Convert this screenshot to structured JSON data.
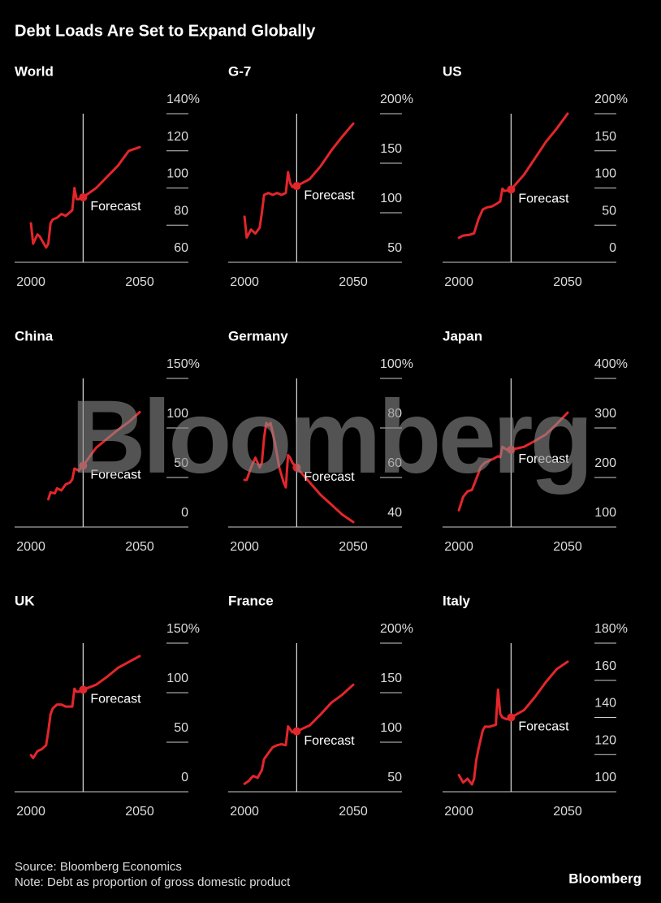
{
  "title": "Debt Loads Are Set to Expand Globally",
  "source": "Source: Bloomberg Economics",
  "note": "Note: Debt as proportion of gross domestic product",
  "logo": "Bloomberg",
  "watermark": "Bloomberg",
  "chart_data": [
    {
      "type": "line",
      "title": "World",
      "color": "#e3262b",
      "x": [
        2000,
        2001,
        2003,
        2004,
        2007,
        2008,
        2009,
        2010,
        2012,
        2014,
        2016,
        2018,
        2019,
        2020,
        2021,
        2022,
        2024,
        2030,
        2035,
        2040,
        2045,
        2050
      ],
      "values": [
        81,
        70,
        75,
        74,
        68,
        70,
        81,
        83,
        84,
        86,
        85,
        87,
        88,
        100,
        94,
        94,
        95,
        100,
        106,
        112,
        120,
        122
      ],
      "xlim": [
        1992.5,
        2072.4
      ],
      "xticks": [
        2000,
        2050
      ],
      "ylim": [
        60,
        140
      ],
      "yticks": [
        60,
        80,
        100,
        120,
        {
          "value": 140,
          "label": "140%"
        }
      ],
      "annotation": {
        "text": "Forecast",
        "x": 2024
      }
    },
    {
      "type": "line",
      "title": "G-7",
      "color": "#e3262b",
      "x": [
        2000,
        2001,
        2003,
        2005,
        2007,
        2008,
        2009,
        2011,
        2013,
        2015,
        2017,
        2019,
        2020,
        2021,
        2022,
        2024,
        2030,
        2035,
        2040,
        2045,
        2050
      ],
      "values": [
        96,
        75,
        83,
        79,
        85,
        100,
        118,
        120,
        118,
        120,
        118,
        120,
        141,
        130,
        126,
        127,
        134,
        147,
        163,
        177,
        190
      ],
      "xlim": [
        1992.5,
        2072.4
      ],
      "xticks": [
        2000,
        2050
      ],
      "ylim": [
        50,
        200
      ],
      "yticks": [
        50,
        100,
        150,
        {
          "value": 200,
          "label": "200%"
        }
      ],
      "annotation": {
        "text": "Forecast",
        "x": 2024
      }
    },
    {
      "type": "line",
      "title": "US",
      "color": "#e3262b",
      "x": [
        2000,
        2002,
        2005,
        2007,
        2009,
        2011,
        2013,
        2015,
        2017,
        2019,
        2020,
        2021,
        2023,
        2024,
        2030,
        2035,
        2040,
        2045,
        2050
      ],
      "values": [
        33,
        36,
        37,
        39,
        58,
        71,
        74,
        75,
        78,
        82,
        99,
        96,
        97,
        98,
        118,
        140,
        162,
        180,
        200
      ],
      "xlim": [
        1992.5,
        2072.4
      ],
      "xticks": [
        2000,
        2050
      ],
      "ylim": [
        0,
        200
      ],
      "yticks": [
        0,
        50,
        100,
        150,
        {
          "value": 200,
          "label": "200%"
        }
      ],
      "annotation": {
        "text": "Forecast",
        "x": 2024
      }
    },
    {
      "type": "line",
      "title": "China",
      "color": "#e3262b",
      "x": [
        2008,
        2009,
        2011,
        2012,
        2014,
        2016,
        2018,
        2019,
        2020,
        2022,
        2024,
        2030,
        2035,
        2040,
        2045,
        2050
      ],
      "values": [
        28,
        35,
        34,
        39,
        37,
        43,
        45,
        48,
        59,
        57,
        62,
        80,
        89,
        98,
        106,
        116
      ],
      "xlim": [
        1992.5,
        2072.4
      ],
      "xticks": [
        2000,
        2050
      ],
      "ylim": [
        0,
        150
      ],
      "yticks": [
        0,
        50,
        100,
        {
          "value": 150,
          "label": "150%"
        }
      ],
      "annotation": {
        "text": "Forecast",
        "x": 2024
      }
    },
    {
      "type": "line",
      "title": "Germany",
      "color": "#e3262b",
      "x": [
        2000,
        2001,
        2003,
        2005,
        2006,
        2007,
        2008,
        2009,
        2010,
        2011,
        2012,
        2014,
        2016,
        2018,
        2019,
        2020,
        2021,
        2022,
        2024,
        2030,
        2035,
        2040,
        2045,
        2050
      ],
      "values": [
        59,
        59,
        64,
        68,
        66,
        64,
        66,
        76,
        82,
        81,
        82,
        74,
        64,
        58,
        56,
        69,
        68,
        66,
        64,
        58,
        53,
        49,
        45,
        42
      ],
      "xlim": [
        1992.5,
        2072.4
      ],
      "xticks": [
        2000,
        2050
      ],
      "ylim": [
        40,
        100
      ],
      "yticks": [
        40,
        60,
        80,
        {
          "value": 100,
          "label": "100%"
        }
      ],
      "annotation": {
        "text": "Forecast",
        "x": 2024
      }
    },
    {
      "type": "line",
      "title": "Japan",
      "color": "#e3262b",
      "x": [
        2000,
        2002,
        2004,
        2006,
        2008,
        2010,
        2012,
        2014,
        2016,
        2018,
        2019,
        2020,
        2022,
        2024,
        2030,
        2035,
        2040,
        2045,
        2050
      ],
      "values": [
        134,
        161,
        172,
        175,
        197,
        221,
        230,
        234,
        238,
        243,
        241,
        262,
        256,
        256,
        262,
        274,
        287,
        308,
        331
      ],
      "xlim": [
        1992.5,
        2072.4
      ],
      "xticks": [
        2000,
        2050
      ],
      "ylim": [
        100,
        400
      ],
      "yticks": [
        100,
        200,
        300,
        {
          "value": 400,
          "label": "400%"
        }
      ],
      "annotation": {
        "text": "Forecast",
        "x": 2024
      }
    },
    {
      "type": "line",
      "title": "UK",
      "color": "#e3262b",
      "x": [
        2000,
        2001,
        2003,
        2005,
        2007,
        2008,
        2009,
        2010,
        2012,
        2014,
        2016,
        2018,
        2019,
        2020,
        2021,
        2022,
        2024,
        2030,
        2035,
        2040,
        2045,
        2050
      ],
      "values": [
        37,
        34,
        41,
        43,
        47,
        61,
        78,
        84,
        88,
        88,
        86,
        86,
        86,
        104,
        101,
        101,
        103,
        108,
        116,
        125,
        131,
        137
      ],
      "xlim": [
        1992.5,
        2072.4
      ],
      "xticks": [
        2000,
        2050
      ],
      "ylim": [
        0,
        150
      ],
      "yticks": [
        0,
        50,
        100,
        {
          "value": 150,
          "label": "150%"
        }
      ],
      "annotation": {
        "text": "Forecast",
        "x": 2024
      }
    },
    {
      "type": "line",
      "title": "France",
      "color": "#e3262b",
      "x": [
        2000,
        2002,
        2004,
        2006,
        2008,
        2009,
        2011,
        2013,
        2015,
        2017,
        2019,
        2020,
        2022,
        2024,
        2030,
        2035,
        2040,
        2045,
        2050
      ],
      "values": [
        58,
        61,
        66,
        64,
        72,
        83,
        89,
        95,
        97,
        98,
        97,
        116,
        110,
        111,
        117,
        128,
        140,
        148,
        158
      ],
      "xlim": [
        1992.5,
        2072.4
      ],
      "xticks": [
        2000,
        2050
      ],
      "ylim": [
        50,
        200
      ],
      "yticks": [
        50,
        100,
        150,
        {
          "value": 200,
          "label": "200%"
        }
      ],
      "annotation": {
        "text": "Forecast",
        "x": 2024
      }
    },
    {
      "type": "line",
      "title": "Italy",
      "color": "#e3262b",
      "x": [
        2000,
        2002,
        2004,
        2006,
        2007,
        2008,
        2009,
        2011,
        2012,
        2014,
        2017,
        2018,
        2019,
        2020,
        2022,
        2024,
        2030,
        2035,
        2040,
        2045,
        2050
      ],
      "values": [
        109,
        105,
        107,
        104,
        107,
        117,
        123,
        133,
        135,
        135,
        136,
        155,
        142,
        140,
        139,
        140,
        144,
        151,
        159,
        166,
        170
      ],
      "xlim": [
        1992.5,
        2072.4
      ],
      "xticks": [
        2000,
        2050
      ],
      "ylim": [
        100,
        180
      ],
      "yticks": [
        100,
        120,
        140,
        160,
        {
          "value": 180,
          "label": "180%"
        }
      ],
      "annotation": {
        "text": "Forecast",
        "x": 2024
      }
    }
  ]
}
